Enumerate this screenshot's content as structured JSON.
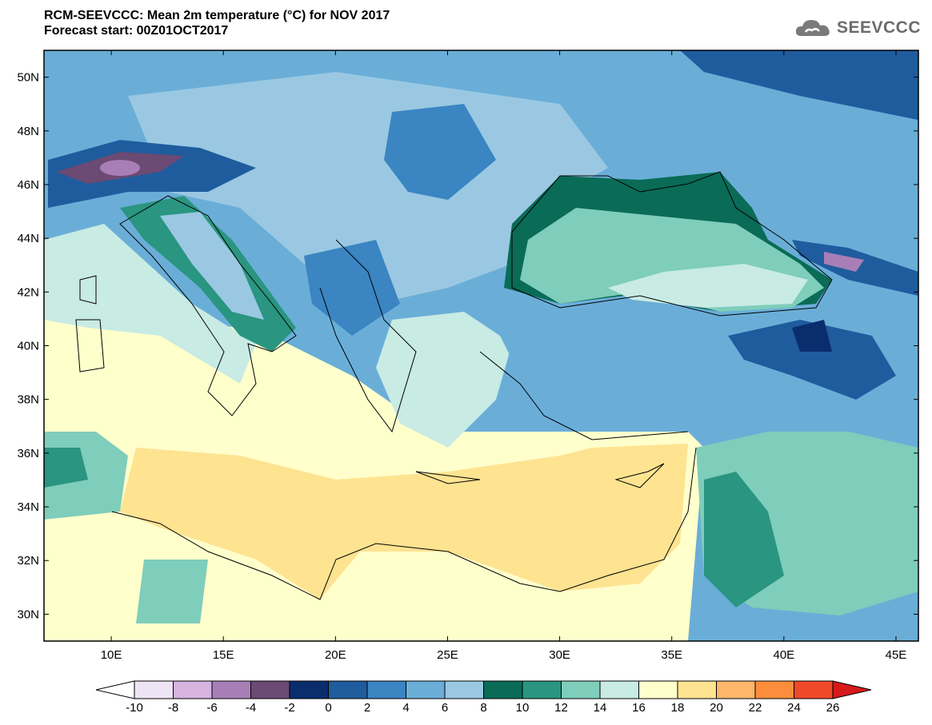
{
  "title": {
    "line1": "RCM-SEEVCCC: Mean 2m temperature (°C) for NOV 2017",
    "line2": "Forecast start: 00Z01OCT2017"
  },
  "logo": {
    "text": "SEEVCCC",
    "icon": "cloud-icon"
  },
  "map": {
    "lon_range": [
      7,
      46
    ],
    "lat_range": [
      29,
      51
    ],
    "lon_ticks": [
      "10E",
      "15E",
      "20E",
      "25E",
      "30E",
      "35E",
      "40E",
      "45E"
    ],
    "lat_ticks": [
      "30N",
      "32N",
      "34N",
      "36N",
      "38N",
      "40N",
      "42N",
      "44N",
      "46N",
      "48N",
      "50N"
    ]
  },
  "colorbar": {
    "labels": [
      "-10",
      "-8",
      "-6",
      "-4",
      "-2",
      "0",
      "2",
      "4",
      "6",
      "8",
      "10",
      "12",
      "14",
      "16",
      "18",
      "20",
      "22",
      "24",
      "26"
    ],
    "under_color": "#ffffff",
    "colors": [
      "#efe4f5",
      "#d6b3e0",
      "#a77fb6",
      "#6b4a74",
      "#0a2d6e",
      "#1f5c9e",
      "#3a85c2",
      "#6aaed8",
      "#9ac8e2",
      "#0a6b56",
      "#2a9580",
      "#7fcdbb",
      "#c8ebe4",
      "#ffffcc",
      "#fee391",
      "#fdb66a",
      "#fc8d3c",
      "#f0492a"
    ],
    "over_color": "#d7191c"
  }
}
